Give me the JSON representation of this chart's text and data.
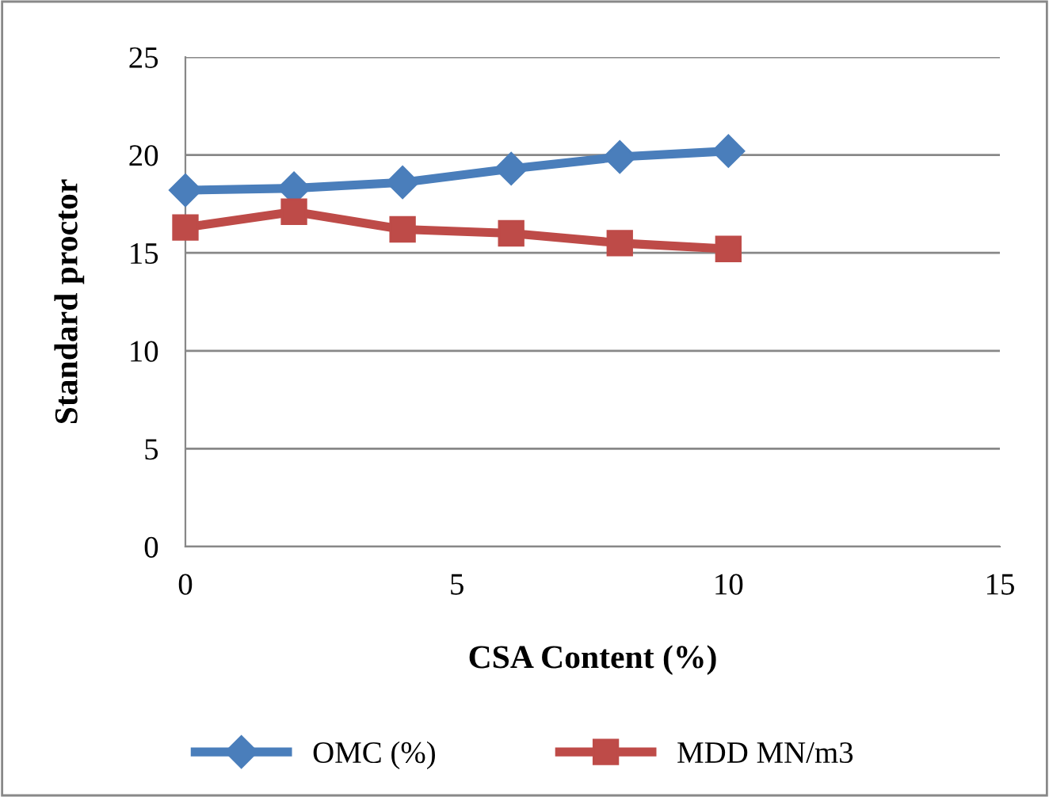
{
  "chart_data": {
    "type": "line",
    "xlabel": "CSA Content (%)",
    "ylabel": "Standard proctor",
    "x": [
      0,
      2,
      4,
      6,
      8,
      10
    ],
    "series": [
      {
        "name": "OMC (%)",
        "color": "#4a7ebb",
        "marker": "diamond",
        "values": [
          18.2,
          18.3,
          18.6,
          19.3,
          19.9,
          20.2
        ]
      },
      {
        "name": "MDD MN/m3",
        "color": "#be4b48",
        "marker": "square",
        "values": [
          16.3,
          17.1,
          16.2,
          16.0,
          15.5,
          15.2
        ]
      }
    ],
    "xlim": [
      0,
      15
    ],
    "xticks": [
      0,
      5,
      10,
      15
    ],
    "ylim": [
      0,
      25
    ],
    "yticks": [
      0,
      5,
      10,
      15,
      20,
      25
    ],
    "grid": "y",
    "legend": "bottom"
  }
}
